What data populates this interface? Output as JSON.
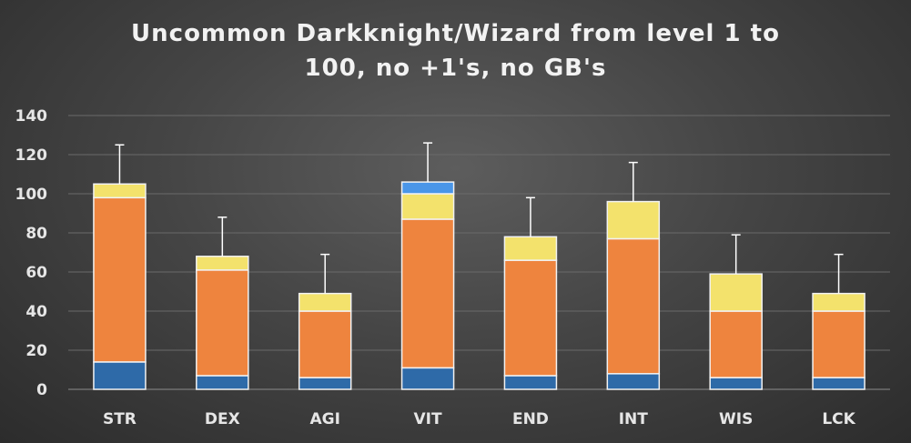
{
  "chart_data": {
    "type": "bar",
    "stacked": true,
    "title_lines": [
      "Uncommon Darkknight/Wizard from level 1 to",
      "100, no +1's, no GB's"
    ],
    "categories": [
      "STR",
      "DEX",
      "AGI",
      "VIT",
      "END",
      "INT",
      "WIS",
      "LCK"
    ],
    "ylim": [
      0,
      140
    ],
    "yticks": [
      0,
      20,
      40,
      60,
      80,
      100,
      120,
      140
    ],
    "grid": true,
    "legend": "none",
    "series": [
      {
        "color": "#2e6aa8",
        "values": [
          14,
          7,
          6,
          11,
          7,
          8,
          6,
          6
        ]
      },
      {
        "color": "#ee843e",
        "values": [
          84,
          54,
          34,
          76,
          59,
          69,
          34,
          34
        ]
      },
      {
        "color": "#f3e26c",
        "values": [
          7,
          7,
          9,
          13,
          12,
          19,
          19,
          9
        ]
      },
      {
        "color": "#4a96e8",
        "values": [
          0,
          0,
          0,
          6,
          0,
          0,
          0,
          0
        ]
      }
    ],
    "error_bar_tops": [
      125,
      88,
      69,
      126,
      98,
      116,
      79,
      69
    ]
  }
}
